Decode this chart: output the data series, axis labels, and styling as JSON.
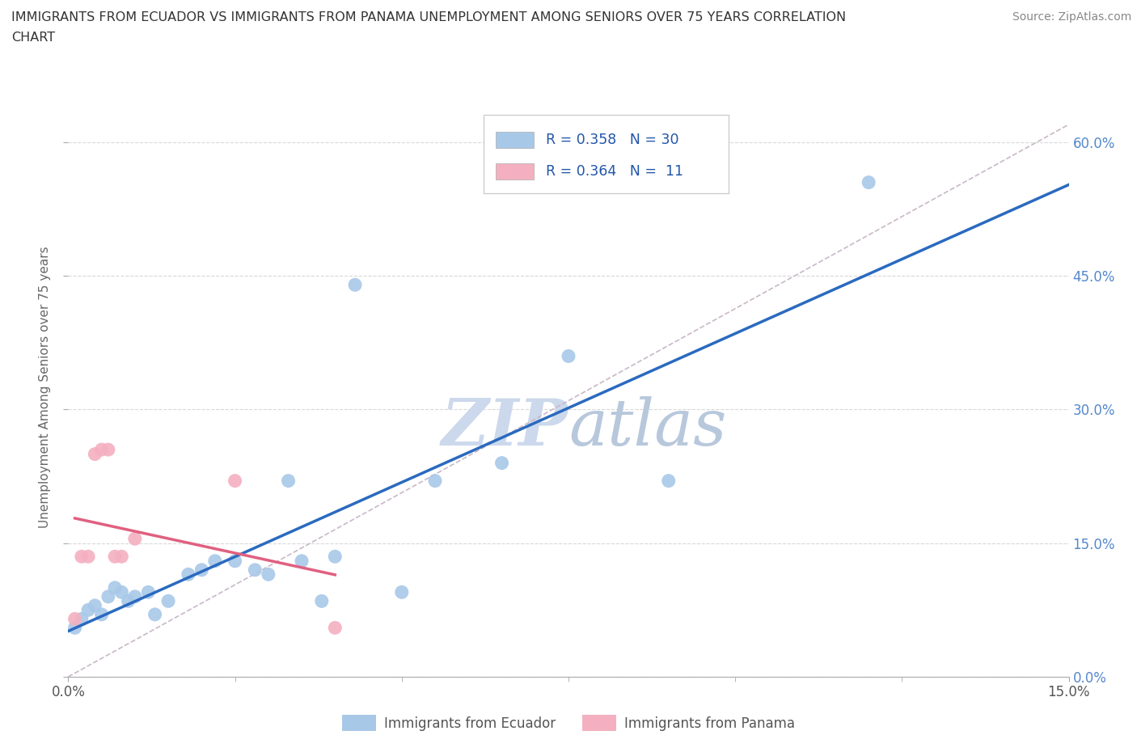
{
  "title_line1": "IMMIGRANTS FROM ECUADOR VS IMMIGRANTS FROM PANAMA UNEMPLOYMENT AMONG SENIORS OVER 75 YEARS CORRELATION",
  "title_line2": "CHART",
  "source": "Source: ZipAtlas.com",
  "ylabel_label": "Unemployment Among Seniors over 75 years",
  "legend_ecuador": "Immigrants from Ecuador",
  "legend_panama": "Immigrants from Panama",
  "R_ecuador": "0.358",
  "N_ecuador": "30",
  "R_panama": "0.364",
  "N_panama": " 11",
  "ecuador_color": "#a8c8e8",
  "panama_color": "#f4b0c0",
  "ecuador_line_color": "#2a6abf",
  "panama_line_color": "#e06080",
  "ref_line_color": "#c8b8c8",
  "watermark_color": "#ccd8ec",
  "ecuador_points_x": [
    0.001,
    0.002,
    0.003,
    0.004,
    0.005,
    0.006,
    0.007,
    0.008,
    0.009,
    0.01,
    0.012,
    0.013,
    0.015,
    0.018,
    0.02,
    0.022,
    0.025,
    0.028,
    0.03,
    0.033,
    0.035,
    0.038,
    0.04,
    0.043,
    0.05,
    0.055,
    0.065,
    0.075,
    0.09,
    0.12
  ],
  "ecuador_points_y": [
    0.055,
    0.065,
    0.075,
    0.08,
    0.07,
    0.09,
    0.1,
    0.095,
    0.085,
    0.09,
    0.095,
    0.07,
    0.085,
    0.115,
    0.12,
    0.13,
    0.13,
    0.12,
    0.115,
    0.22,
    0.13,
    0.085,
    0.135,
    0.44,
    0.095,
    0.22,
    0.24,
    0.36,
    0.22,
    0.555
  ],
  "panama_points_x": [
    0.001,
    0.002,
    0.003,
    0.004,
    0.005,
    0.006,
    0.007,
    0.008,
    0.01,
    0.025,
    0.04
  ],
  "panama_points_y": [
    0.065,
    0.135,
    0.135,
    0.25,
    0.255,
    0.255,
    0.135,
    0.135,
    0.155,
    0.22,
    0.055
  ],
  "xmin": 0.0,
  "xmax": 0.15,
  "ymin": 0.0,
  "ymax": 0.65,
  "yticks": [
    0.0,
    0.15,
    0.3,
    0.45,
    0.6
  ],
  "ytick_labels": [
    "0.0%",
    "15.0%",
    "30.0%",
    "45.0%",
    "60.0%"
  ]
}
